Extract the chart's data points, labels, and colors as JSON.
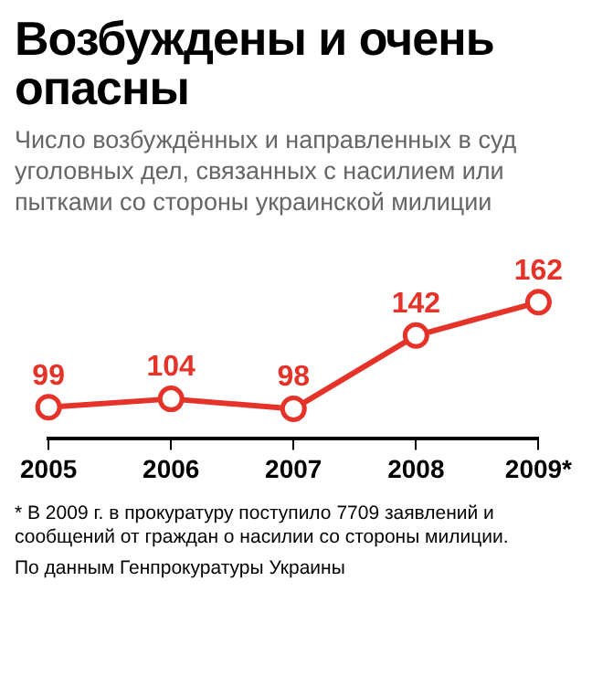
{
  "chart_data": {
    "type": "line",
    "title": "Возбуждены и очень опасны",
    "subtitle": "Число возбуждённых и направленных в суд уголовных дел, связанных с насилием или пытками со стороны украинской милиции",
    "categories": [
      "2005",
      "2006",
      "2007",
      "2008",
      "2009*"
    ],
    "series": [
      {
        "color": "#e5332a",
        "values": [
          99,
          104,
          98,
          142,
          162
        ]
      }
    ],
    "data_labels": true,
    "marker": "circle",
    "line_style": "solid",
    "grid": false,
    "legend": false,
    "tick_labels": "x",
    "annotations": [
      "* В 2009 г. в прокуратуру поступило 7709 заявлений и сообщений от граждан о насилии со стороны милиции.",
      "По данным Генпрокуратуры Украины"
    ]
  }
}
